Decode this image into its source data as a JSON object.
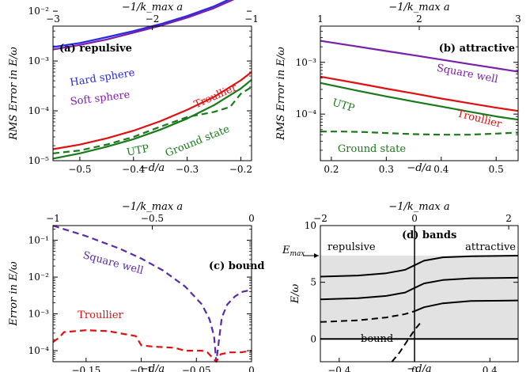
{
  "chart_data": [
    {
      "type": "line",
      "panel": "a",
      "title": "(a) repulsive",
      "xlabel": "−d/a",
      "top_xlabel": "−1/k_max a",
      "ylabel": "RMS Error in E/ω",
      "xlim": [
        -0.55,
        -0.18
      ],
      "ylim_log10": [
        -5,
        -2.3
      ],
      "yscale": "log",
      "xticks": [
        "−0.5",
        "−0.4",
        "−0.3",
        "−0.2"
      ],
      "top_ticks": [
        "−3",
        "−2",
        "−1"
      ],
      "yticks": [
        "10⁻⁵",
        "10⁻⁴",
        "10⁻³",
        "10⁻²"
      ],
      "series": [
        {
          "name": "Hard sphere",
          "color": "#2a2ae0",
          "dash": "solid",
          "x": [
            -0.55,
            -0.5,
            -0.45,
            -0.4,
            -0.35,
            -0.3,
            -0.25,
            -0.2,
            -0.18
          ],
          "y": [
            0.0019,
            0.0023,
            0.003,
            0.004,
            0.0055,
            0.008,
            0.0125,
            0.022,
            0.03
          ]
        },
        {
          "name": "Soft sphere",
          "color": "#7a1fa8",
          "dash": "solid",
          "x": [
            -0.55,
            -0.5,
            -0.45,
            -0.4,
            -0.35,
            -0.3,
            -0.25,
            -0.2,
            -0.18
          ],
          "y": [
            0.0017,
            0.0021,
            0.0027,
            0.0037,
            0.0051,
            0.0074,
            0.0115,
            0.02,
            0.027
          ]
        },
        {
          "name": "Troullier",
          "color": "#e01010",
          "dash": "solid",
          "x": [
            -0.55,
            -0.5,
            -0.45,
            -0.4,
            -0.35,
            -0.3,
            -0.25,
            -0.2,
            -0.18
          ],
          "y": [
            1.7e-05,
            2.1e-05,
            2.8e-05,
            4e-05,
            6.2e-05,
            0.000105,
            0.00019,
            0.00041,
            0.0006
          ]
        },
        {
          "name": "UTP",
          "color": "#1a7a1a",
          "dash": "solid",
          "x": [
            -0.55,
            -0.5,
            -0.45,
            -0.4,
            -0.35,
            -0.3,
            -0.25,
            -0.2,
            -0.18
          ],
          "y": [
            1.1e-05,
            1.4e-05,
            1.9e-05,
            2.7e-05,
            4.2e-05,
            7e-05,
            0.00013,
            0.00028,
            0.00042
          ]
        },
        {
          "name": "Ground state",
          "color": "#1a7a1a",
          "dash": "dashed",
          "x": [
            -0.55,
            -0.5,
            -0.45,
            -0.4,
            -0.35,
            -0.3,
            -0.25,
            -0.22,
            -0.2,
            -0.18
          ],
          "y": [
            1.4e-05,
            1.6e-05,
            2.1e-05,
            3e-05,
            4.8e-05,
            7.5e-05,
            9.5e-05,
            0.00012,
            0.00022,
            0.0003
          ]
        }
      ]
    },
    {
      "type": "line",
      "panel": "b",
      "title": "(b) attractive",
      "xlabel": "−d/a",
      "top_xlabel": "−1/k_max a",
      "ylabel": "RMS Error in E/ω",
      "xlim": [
        0.18,
        0.54
      ],
      "ylim_log10": [
        -4.9,
        -2.3
      ],
      "yscale": "log",
      "xticks": [
        "0.2",
        "0.3",
        "0.4",
        "0.5"
      ],
      "top_ticks": [
        "1",
        "2",
        "3"
      ],
      "yticks": [
        "10⁻⁴",
        "10⁻³"
      ],
      "series": [
        {
          "name": "Square well",
          "color": "#7a1fa8",
          "dash": "solid",
          "x": [
            0.18,
            0.25,
            0.3,
            0.35,
            0.4,
            0.45,
            0.5,
            0.54
          ],
          "y": [
            0.0026,
            0.002,
            0.00165,
            0.00137,
            0.00113,
            0.00093,
            0.00077,
            0.00066
          ]
        },
        {
          "name": "Troullier",
          "color": "#e01010",
          "dash": "solid",
          "x": [
            0.18,
            0.25,
            0.3,
            0.35,
            0.4,
            0.45,
            0.5,
            0.54
          ],
          "y": [
            0.00053,
            0.00039,
            0.00031,
            0.00025,
            0.0002,
            0.000163,
            0.000133,
            0.000115
          ]
        },
        {
          "name": "UTP",
          "color": "#1a7a1a",
          "dash": "solid",
          "x": [
            0.18,
            0.25,
            0.3,
            0.35,
            0.4,
            0.45,
            0.5,
            0.54
          ],
          "y": [
            0.0004,
            0.00028,
            0.00022,
            0.000175,
            0.00014,
            0.000112,
            9e-05,
            7.8e-05
          ]
        },
        {
          "name": "Ground state",
          "color": "#1a7a1a",
          "dash": "dashed",
          "x": [
            0.18,
            0.22,
            0.26,
            0.3,
            0.35,
            0.4,
            0.45,
            0.5,
            0.54
          ],
          "y": [
            4.6e-05,
            4.6e-05,
            4.5e-05,
            4.3e-05,
            4.1e-05,
            4e-05,
            4e-05,
            4.2e-05,
            4.4e-05
          ]
        }
      ]
    },
    {
      "type": "line",
      "panel": "c",
      "title": "(c) bound",
      "xlabel": "−d/a",
      "top_xlabel": "−1/k_max a",
      "ylabel": "Error in E/ω",
      "xlim": [
        -0.18,
        0
      ],
      "ylim_log10": [
        -4.3,
        -0.6
      ],
      "yscale": "log",
      "xticks": [
        "−0.15",
        "−0.1",
        "−0.05",
        "0"
      ],
      "top_ticks": [
        "−1",
        "−0.5",
        "0"
      ],
      "yticks": [
        "10⁻⁴",
        "10⁻³",
        "10⁻²",
        "10⁻¹"
      ],
      "series": [
        {
          "name": "Square well",
          "color": "#5a2aa8",
          "dash": "dashed",
          "x": [
            -0.18,
            -0.15,
            -0.12,
            -0.1,
            -0.08,
            -0.06,
            -0.045,
            -0.038,
            -0.034,
            -0.032,
            -0.03,
            -0.027,
            -0.022,
            -0.015,
            -0.008,
            0
          ],
          "y": [
            0.25,
            0.13,
            0.06,
            0.032,
            0.015,
            0.0055,
            0.0018,
            0.0007,
            0.00025,
            5e-05,
            0.00015,
            0.0008,
            0.0018,
            0.003,
            0.004,
            0.0045
          ]
        },
        {
          "name": "Troullier",
          "color": "#e01010",
          "dash": "dashed",
          "x": [
            -0.18,
            -0.175,
            -0.17,
            -0.15,
            -0.13,
            -0.12,
            -0.105,
            -0.1,
            -0.09,
            -0.07,
            -0.06,
            -0.045,
            -0.04,
            -0.032,
            -0.028,
            -0.02,
            -0.01,
            0
          ],
          "y": [
            0.00017,
            0.00022,
            0.00032,
            0.00036,
            0.00034,
            0.0003,
            0.00025,
            0.00014,
            0.00013,
            0.00012,
            0.0001,
            0.0001,
            9e-05,
            5e-05,
            8e-05,
            9e-05,
            9e-05,
            0.0001
          ]
        }
      ]
    },
    {
      "type": "line",
      "panel": "d",
      "title": "(d) bands",
      "xlabel": "−d/a",
      "top_xlabel": "−1/k_max a",
      "ylabel": "E/ω",
      "xlim": [
        -0.5,
        0.55
      ],
      "ylim": [
        -2,
        10
      ],
      "xticks": [
        "−0.4",
        "0",
        "0.4"
      ],
      "top_ticks": [
        "−2",
        "0",
        "2"
      ],
      "yticks": [
        "0",
        "5",
        "10"
      ],
      "emax_label": "E_max",
      "emax_value": 7.35,
      "annotations": [
        "repulsive",
        "attractive",
        "bound"
      ],
      "series": [
        {
          "color": "#000",
          "dash": "solid",
          "x": [
            -0.5,
            -0.3,
            -0.15,
            -0.05,
            0,
            0.05,
            0.15,
            0.3,
            0.55
          ],
          "y": [
            5.5,
            5.6,
            5.8,
            6.1,
            6.5,
            6.9,
            7.2,
            7.3,
            7.35
          ]
        },
        {
          "color": "#000",
          "dash": "solid",
          "x": [
            -0.5,
            -0.3,
            -0.15,
            -0.05,
            0,
            0.05,
            0.15,
            0.3,
            0.55
          ],
          "y": [
            3.5,
            3.6,
            3.8,
            4.1,
            4.5,
            4.9,
            5.2,
            5.35,
            5.4
          ]
        },
        {
          "color": "#000",
          "dash": "solid",
          "x": [
            -0.5,
            -0.3,
            -0.15,
            -0.05,
            0,
            0.05,
            0.15,
            0.3,
            0.55
          ],
          "y": [
            0.0,
            0.0,
            0.0,
            0.0,
            0.0,
            0.0,
            0.0,
            0.0,
            0.0
          ]
        },
        {
          "color": "#000",
          "dash": "dashed",
          "x": [
            -0.5,
            -0.3,
            -0.15,
            -0.05,
            0
          ],
          "y": [
            1.5,
            1.65,
            1.9,
            2.2,
            2.45
          ]
        },
        {
          "color": "#000",
          "dash": "solid",
          "x": [
            0,
            0.05,
            0.15,
            0.3,
            0.55
          ],
          "y": [
            2.45,
            2.8,
            3.15,
            3.35,
            3.4
          ]
        },
        {
          "color": "#000",
          "dash": "dashed",
          "x": [
            -0.12,
            -0.08,
            -0.04,
            0,
            0.03
          ],
          "y": [
            -2.0,
            -1.2,
            -0.2,
            0.8,
            1.4
          ]
        }
      ]
    }
  ]
}
